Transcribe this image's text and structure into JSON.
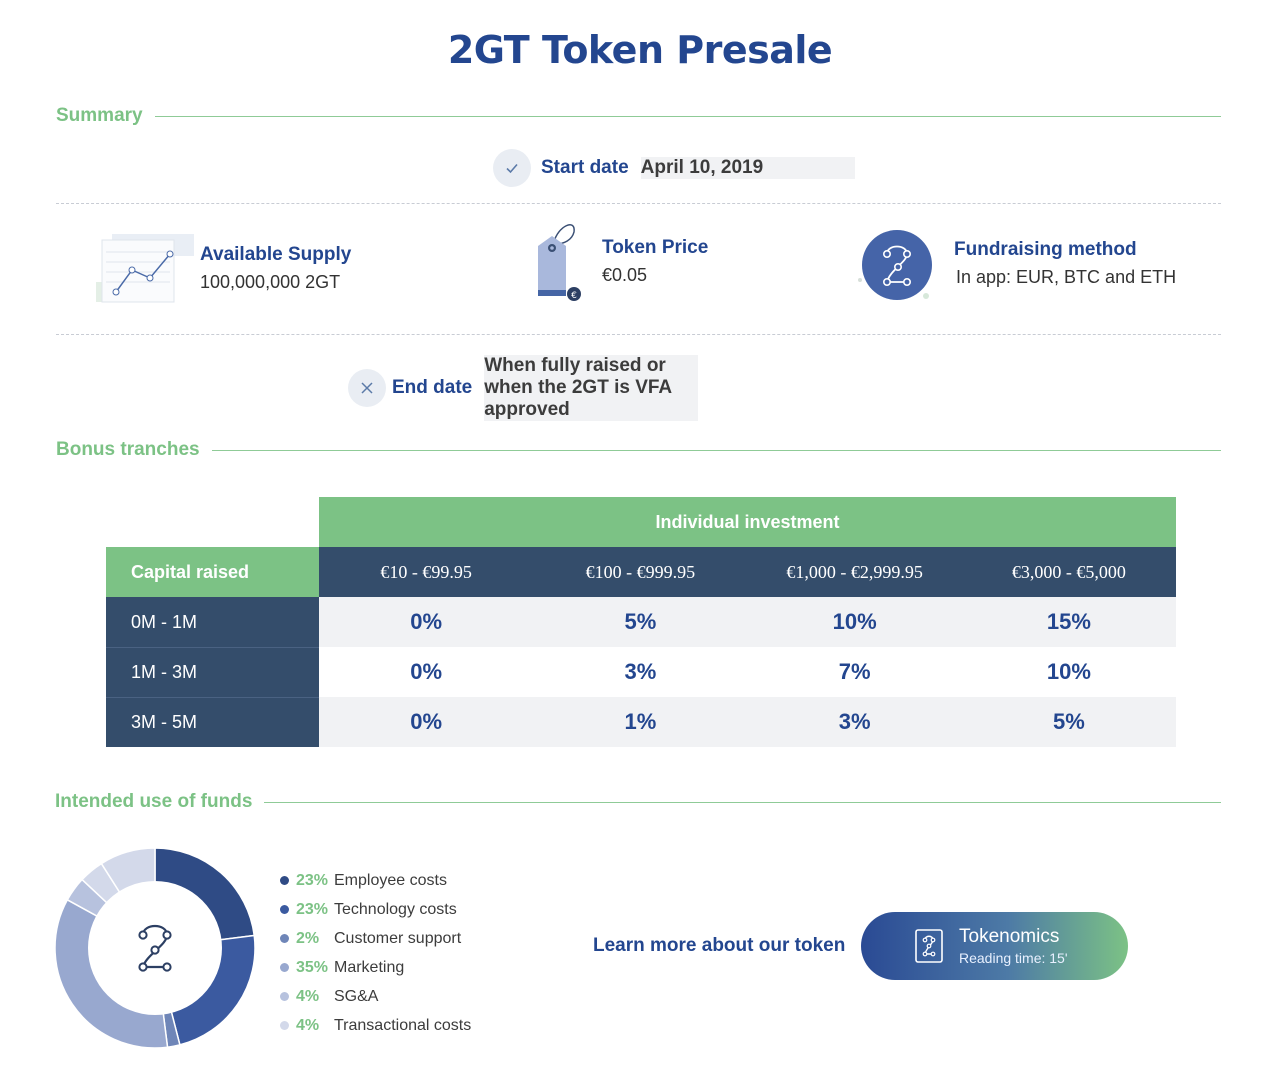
{
  "title": "2GT Token Presale",
  "sections": {
    "summary": "Summary",
    "bonus": "Bonus tranches",
    "funds": "Intended use of funds"
  },
  "summary": {
    "start_label": "Start date",
    "start_value": "April 10, 2019",
    "supply_label": "Available Supply",
    "supply_value": "100,000,000 2GT",
    "price_label": "Token Price",
    "price_value": "€0.05",
    "method_label": "Fundraising method",
    "method_value": "In app: EUR, BTC and ETH",
    "end_label": "End date",
    "end_value": "When fully raised or when the 2GT is VFA approved"
  },
  "table": {
    "group_header": "Individual investment",
    "corner_header": "Capital raised",
    "columns": [
      "€10 - €99.95",
      "€100 - €999.95",
      "€1,000 - €2,999.95",
      "€3,000 - €5,000"
    ],
    "rows": [
      {
        "label": "0M - 1M",
        "values": [
          "0%",
          "5%",
          "10%",
          "15%"
        ]
      },
      {
        "label": "1M - 3M",
        "values": [
          "0%",
          "3%",
          "7%",
          "10%"
        ]
      },
      {
        "label": "3M - 5M",
        "values": [
          "0%",
          "1%",
          "3%",
          "5%"
        ]
      }
    ]
  },
  "chart_data": {
    "type": "pie",
    "title": "Intended use of funds",
    "series": [
      {
        "name": "Employee costs",
        "value": 23,
        "label": "23%",
        "color": "#2f4b85"
      },
      {
        "name": "Technology costs",
        "value": 23,
        "label": "23%",
        "color": "#3b5aa0"
      },
      {
        "name": "Customer support",
        "value": 2,
        "label": "2%",
        "color": "#6f86b8"
      },
      {
        "name": "Marketing",
        "value": 35,
        "label": "35%",
        "color": "#98a8cf"
      },
      {
        "name": "SG&A",
        "value": 4,
        "label": "4%",
        "color": "#b7c2de"
      },
      {
        "name": "Transactional costs",
        "value": 4,
        "label": "4%",
        "color": "#d3d9ea"
      }
    ],
    "remainder_color": "#d3d9ea"
  },
  "cta": {
    "learn_more": "Learn more about our token",
    "button_title": "Tokenomics",
    "button_sub": "Reading time: 15'"
  }
}
